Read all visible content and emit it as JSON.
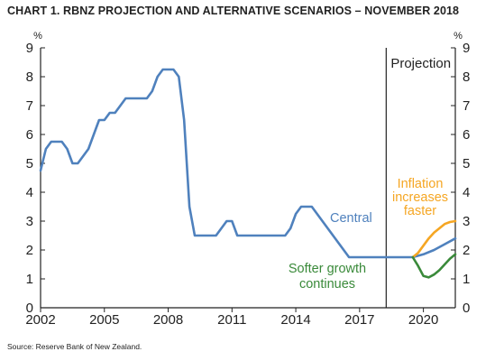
{
  "title": "CHART 1. RBNZ PROJECTION AND ALTERNATIVE SCENARIOS – NOVEMBER 2018",
  "source": "Source: Reserve Bank of New Zealand.",
  "chart_data": {
    "type": "line",
    "title": "CHART 1. RBNZ PROJECTION AND ALTERNATIVE SCENARIOS – NOVEMBER 2018",
    "y_unit_left": "%",
    "y_unit_right": "%",
    "ylim": [
      0,
      9
    ],
    "xlim": [
      2002,
      2021.5
    ],
    "y_ticks": [
      "0",
      "1",
      "2",
      "3",
      "4",
      "5",
      "6",
      "7",
      "8",
      "9"
    ],
    "x_ticks": [
      "2002",
      "2005",
      "2008",
      "2011",
      "2014",
      "2017",
      "2020"
    ],
    "grid": false,
    "projection_start": 2018.25,
    "projection_label": "Projection",
    "colors": {
      "central": "#4f81bd",
      "faster": "#f5a623",
      "softer": "#3a8a3a",
      "axis": "#222222"
    },
    "annotations": {
      "central": "Central",
      "faster": [
        "Inflation",
        "increases",
        "faster"
      ],
      "softer": [
        "Softer growth",
        "continues"
      ]
    },
    "series": [
      {
        "key": "central",
        "x": [
          2002.0,
          2002.25,
          2002.5,
          2002.75,
          2003.0,
          2003.25,
          2003.5,
          2003.75,
          2004.0,
          2004.25,
          2004.5,
          2004.75,
          2005.0,
          2005.25,
          2005.5,
          2005.75,
          2006.0,
          2006.25,
          2006.5,
          2006.75,
          2007.0,
          2007.25,
          2007.5,
          2007.75,
          2008.0,
          2008.25,
          2008.5,
          2008.75,
          2009.0,
          2009.25,
          2009.5,
          2009.75,
          2010.0,
          2010.25,
          2010.5,
          2010.75,
          2011.0,
          2011.25,
          2011.5,
          2012.0,
          2013.0,
          2013.5,
          2013.75,
          2014.0,
          2014.25,
          2014.5,
          2014.75,
          2015.0,
          2015.25,
          2015.5,
          2015.75,
          2016.0,
          2016.25,
          2016.5,
          2016.75,
          2017.0,
          2017.5,
          2018.0,
          2018.5,
          2019.0,
          2019.5,
          2020.0,
          2020.5,
          2021.0,
          2021.5
        ],
        "y": [
          4.75,
          5.5,
          5.75,
          5.75,
          5.75,
          5.5,
          5.0,
          5.0,
          5.25,
          5.5,
          6.0,
          6.5,
          6.5,
          6.75,
          6.75,
          7.0,
          7.25,
          7.25,
          7.25,
          7.25,
          7.25,
          7.5,
          8.0,
          8.25,
          8.25,
          8.25,
          8.0,
          6.5,
          3.5,
          2.5,
          2.5,
          2.5,
          2.5,
          2.5,
          2.75,
          3.0,
          3.0,
          2.5,
          2.5,
          2.5,
          2.5,
          2.5,
          2.75,
          3.25,
          3.5,
          3.5,
          3.5,
          3.25,
          3.0,
          2.75,
          2.5,
          2.25,
          2.0,
          1.75,
          1.75,
          1.75,
          1.75,
          1.75,
          1.75,
          1.75,
          1.75,
          1.85,
          2.0,
          2.2,
          2.4
        ]
      },
      {
        "key": "faster",
        "x": [
          2019.5,
          2019.75,
          2020.0,
          2020.25,
          2020.5,
          2020.75,
          2021.0,
          2021.25,
          2021.5
        ],
        "y": [
          1.75,
          1.9,
          2.15,
          2.4,
          2.6,
          2.75,
          2.9,
          2.97,
          3.0
        ]
      },
      {
        "key": "softer",
        "x": [
          2019.5,
          2019.75,
          2020.0,
          2020.25,
          2020.5,
          2020.75,
          2021.0,
          2021.25,
          2021.5
        ],
        "y": [
          1.75,
          1.45,
          1.1,
          1.05,
          1.15,
          1.3,
          1.5,
          1.7,
          1.85
        ]
      }
    ]
  }
}
